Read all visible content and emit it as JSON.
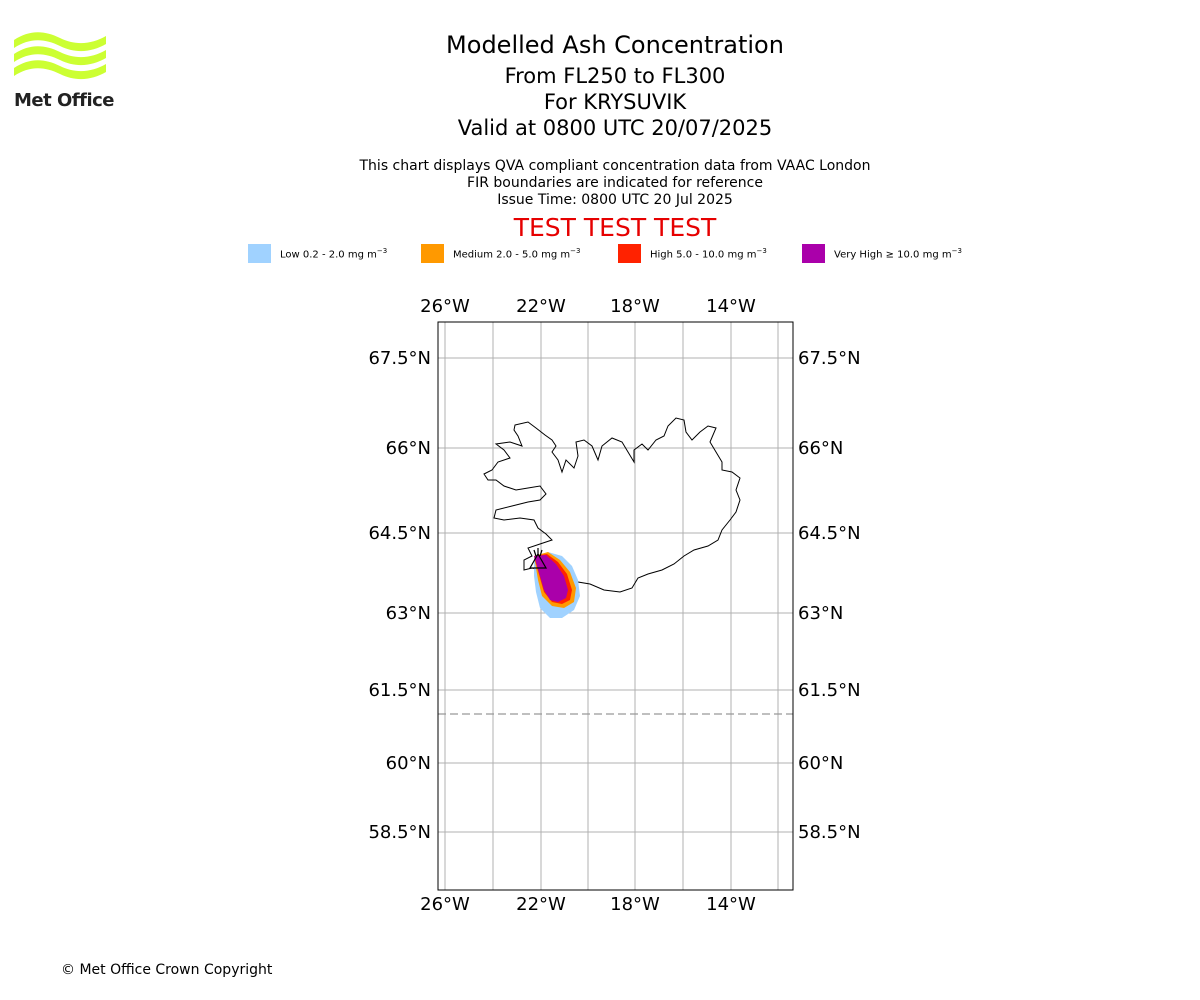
{
  "brand": {
    "logo_text": "Met Office",
    "logo_color": "#ccff33"
  },
  "header": {
    "title": "Modelled Ash Concentration",
    "flight_levels": "From FL250 to FL300",
    "volcano": "For KRYSUVIK",
    "valid": "Valid at 0800 UTC 20/07/2025"
  },
  "info": {
    "line1": "This chart displays QVA compliant concentration data from VAAC London",
    "line2": "FIR boundaries are indicated for reference",
    "line3": "Issue Time: 0800 UTC 20 Jul 2025"
  },
  "banner": {
    "text": "TEST TEST TEST",
    "color": "#e60000"
  },
  "legend": [
    {
      "label": "Low 0.2 - 2.0 mg m",
      "exp": "−3",
      "color": "#a0d2ff"
    },
    {
      "label": "Medium 2.0 - 5.0 mg m",
      "exp": "−3",
      "color": "#ff9900"
    },
    {
      "label": "High 5.0 - 10.0 mg m",
      "exp": "−3",
      "color": "#ff2200"
    },
    {
      "label": "Very High  ≥  10.0 mg m",
      "exp": "−3",
      "color": "#aa00aa"
    }
  ],
  "map": {
    "lon_labels": [
      "26°W",
      "22°W",
      "18°W",
      "14°W"
    ],
    "lat_labels": [
      "67.5°N",
      "66°N",
      "64.5°N",
      "63°N",
      "61.5°N",
      "60°N",
      "58.5°N"
    ],
    "volcano_marker": "volcano-icon"
  },
  "footer": {
    "copyright": "© Met Office Crown Copyright"
  }
}
